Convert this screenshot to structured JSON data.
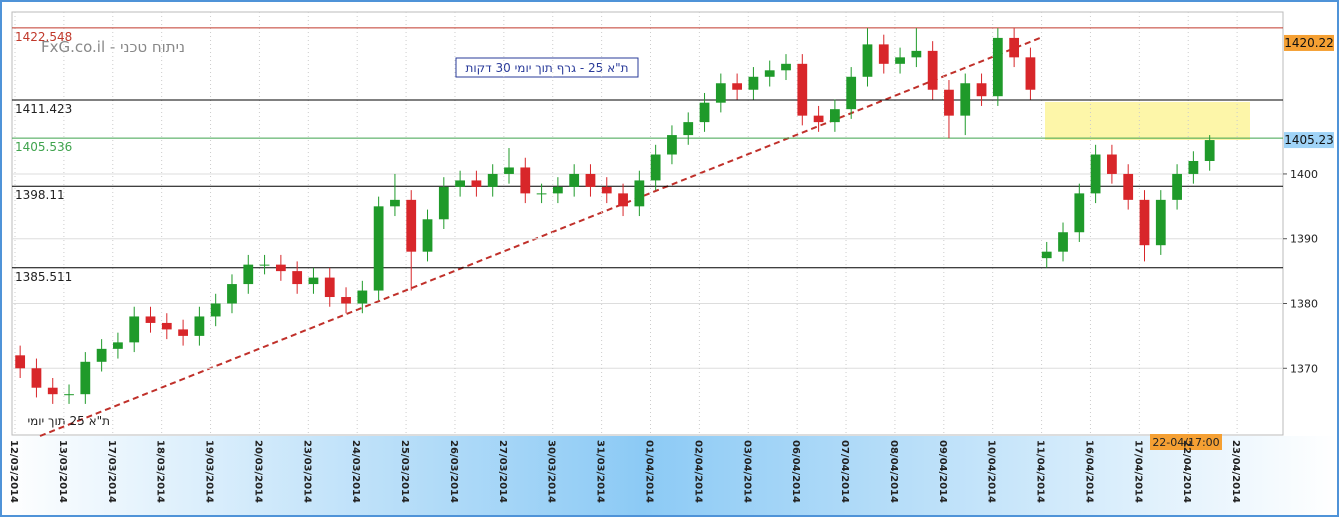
{
  "chart_data": {
    "type": "candlestick",
    "title": "ת\"א 25 - גרף תוך יומי 30 דקות",
    "watermark": "FxG.co.il - ניתוח טכני",
    "note": "ת\"א 25 תוך יומי",
    "cursor_label": "22-04/17:00",
    "categories": [
      "12/03/2014",
      null,
      null,
      "13/03/2014",
      null,
      null,
      "17/03/2014",
      null,
      null,
      "18/03/2014",
      null,
      null,
      "19/03/2014",
      null,
      null,
      "20/03/2014",
      null,
      null,
      "23/03/2014",
      null,
      null,
      "24/03/2014",
      null,
      null,
      "25/03/2014",
      null,
      null,
      "26/03/2014",
      null,
      null,
      "27/03/2014",
      null,
      null,
      "30/03/2014",
      null,
      null,
      "31/03/2014",
      null,
      null,
      "01/04/2014",
      null,
      null,
      "02/04/2014",
      null,
      null,
      "03/04/2014",
      null,
      null,
      "06/04/2014",
      null,
      null,
      "07/04/2014",
      null,
      null,
      "08/04/2014",
      null,
      null,
      "09/04/2014",
      null,
      null,
      "10/04/2014",
      null,
      null,
      "11/04/2014",
      null,
      null,
      "16/04/2014",
      null,
      null,
      "17/04/2014",
      null,
      null,
      "22/04/2014",
      null,
      null,
      "23/04/2014",
      null,
      null
    ],
    "open": [
      1372,
      1370,
      1367,
      1366,
      1366,
      1371,
      1373,
      1374,
      1378,
      1377,
      1376,
      1375,
      1378,
      1380,
      1383,
      1386,
      1386,
      1385,
      1383,
      1384,
      1381,
      1380,
      1382,
      1395,
      1396,
      1388,
      1393,
      1398,
      1399,
      1398,
      1400,
      1401,
      1397,
      1397,
      1398,
      1400,
      1398,
      1397,
      1395,
      1399,
      1403,
      1406,
      1408,
      1411,
      1414,
      1413,
      1415,
      1416,
      1417,
      1409,
      1408,
      1410,
      1415,
      1420,
      1417,
      1418,
      1419,
      1413,
      1409,
      1414,
      1412,
      1421,
      1418,
      1387,
      1388,
      1391,
      1397,
      1403,
      1400,
      1396,
      1389,
      1396,
      1400,
      1402,
      null,
      null,
      null,
      null
    ],
    "high": [
      1373.5,
      1371.5,
      1368.5,
      1367.5,
      1372.5,
      1374.5,
      1375.5,
      1379.5,
      1379.5,
      1378.5,
      1377.5,
      1379.5,
      1381.5,
      1384.5,
      1387.5,
      1387.5,
      1387.5,
      1386.5,
      1385.5,
      1385.5,
      1382.5,
      1383.5,
      1396.5,
      1400,
      1397.5,
      1394.5,
      1399.5,
      1400.5,
      1400.5,
      1401.5,
      1404,
      1402.5,
      1398.5,
      1399.5,
      1401.5,
      1401.5,
      1399.5,
      1398.5,
      1400.5,
      1404.5,
      1407.5,
      1409.5,
      1412.5,
      1415.5,
      1415.5,
      1416.5,
      1417.5,
      1418.5,
      1418.5,
      1410.5,
      1411.5,
      1416.5,
      1422.5,
      1421.5,
      1419.5,
      1422.5,
      1420.5,
      1414.5,
      1415.5,
      1415.5,
      1422.5,
      1422.5,
      1419.5,
      1389.5,
      1392.5,
      1398.5,
      1404.5,
      1404.5,
      1401.5,
      1397.5,
      1397.5,
      1401.5,
      1403.5,
      1406,
      null,
      null,
      null,
      null
    ],
    "low": [
      1368.5,
      1365.5,
      1364.5,
      1364.5,
      1364.5,
      1369.5,
      1371.5,
      1372.5,
      1375.5,
      1374.5,
      1373.5,
      1373.5,
      1376.5,
      1378.5,
      1381.5,
      1384.5,
      1383.5,
      1381.5,
      1381.5,
      1379.5,
      1378.5,
      1378.5,
      1380.5,
      1393.5,
      1382,
      1386.5,
      1391.5,
      1396.5,
      1396.5,
      1396.5,
      1398.5,
      1395.5,
      1395.5,
      1395.5,
      1396.5,
      1396.5,
      1395.5,
      1393.5,
      1393.5,
      1397.5,
      1401.5,
      1404.5,
      1406.5,
      1409.5,
      1411.5,
      1411.5,
      1413.5,
      1414.5,
      1407.5,
      1406.5,
      1406.5,
      1408.5,
      1413.5,
      1415.5,
      1415.5,
      1416.5,
      1411.5,
      1405.5,
      1406,
      1410.5,
      1410.5,
      1416.5,
      1411.5,
      1385.5,
      1386.5,
      1389.5,
      1395.5,
      1398.5,
      1394.5,
      1386.5,
      1387.5,
      1394.5,
      1398.5,
      1400.5,
      null,
      null,
      null,
      null
    ],
    "close": [
      1370,
      1367,
      1366,
      1366,
      1371,
      1373,
      1374,
      1378,
      1377,
      1376,
      1375,
      1378,
      1380,
      1383,
      1386,
      1386,
      1385,
      1383,
      1384,
      1381,
      1380,
      1382,
      1395,
      1396,
      1388,
      1393,
      1398,
      1399,
      1398,
      1400,
      1401,
      1397,
      1397,
      1398,
      1400,
      1398,
      1397,
      1395,
      1399,
      1403,
      1406,
      1408,
      1411,
      1414,
      1413,
      1415,
      1416,
      1417,
      1409,
      1408,
      1410,
      1415,
      1420,
      1417,
      1418,
      1419,
      1413,
      1409,
      1414,
      1412,
      1421,
      1418,
      1413,
      1388,
      1391,
      1397,
      1403,
      1400,
      1396,
      1389,
      1396,
      1400,
      1402,
      1405.23,
      null,
      null,
      null,
      null
    ],
    "up_color": "#1f9a2a",
    "down_color": "#d8262a",
    "ylim": [
      1359.7,
      1425
    ],
    "yticks": [
      1370,
      1380,
      1390,
      1400
    ],
    "grid": true,
    "levels": [
      {
        "value": 1422.548,
        "color": "#c0392b"
      },
      {
        "value": 1411.423,
        "color": "#000000"
      },
      {
        "value": 1405.536,
        "color": "#3fa34d"
      },
      {
        "value": 1398.11,
        "color": "#000000"
      },
      {
        "value": 1385.511,
        "color": "#000000"
      }
    ],
    "price_tags": [
      {
        "value": 1420.22,
        "color": "#f5a033"
      },
      {
        "value": 1405.23,
        "color": "#9fd3f7"
      }
    ]
  }
}
